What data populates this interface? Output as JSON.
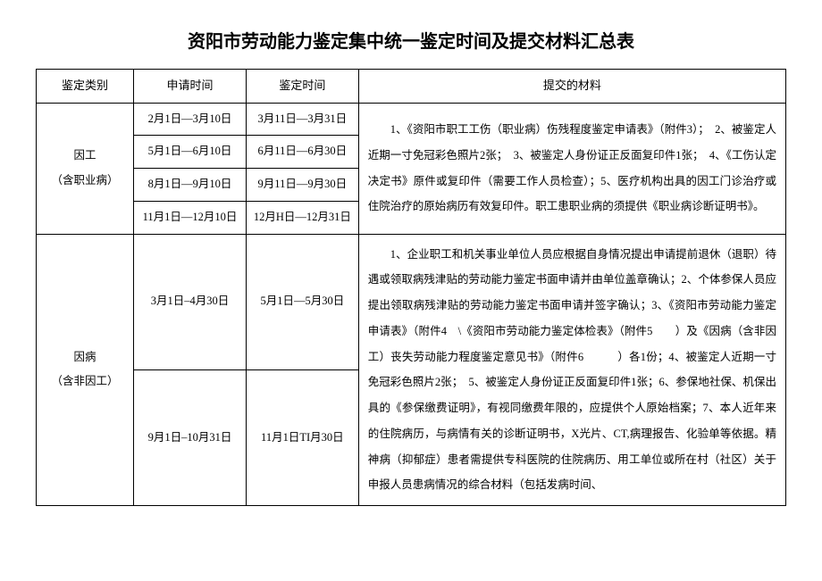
{
  "title": "资阳市劳动能力鉴定集中统一鉴定时间及提交材料汇总表",
  "title_fontsize": "20px",
  "headers": {
    "category": "鉴定类别",
    "apply_time": "申请时间",
    "assess_time": "鉴定时间",
    "materials": "提交的材料"
  },
  "header_fontsize": "13px",
  "body_fontsize": "12.5px",
  "section1": {
    "category_line1": "因工",
    "category_line2": "（含职业病）",
    "rows": [
      {
        "apply": "2月1日—3月10日",
        "assess": "3月11日—3月31日"
      },
      {
        "apply": "5月1日—6月10日",
        "assess": "6月11日—6月30日"
      },
      {
        "apply": "8月1日—9月10日",
        "assess": "9月11日—9月30日"
      },
      {
        "apply": "11月1日—12月10日",
        "assess": "12月H日—12月31日"
      }
    ],
    "materials": "　　1、《资阳市职工工伤（职业病）伤残程度鉴定申请表》（附件3）；　2、被鉴定人近期一寸免冠彩色照片2张；　3、被鉴定人身份证正反面复印件1张；　4、《工伤认定决定书》原件或复印件（需要工作人员检查）；5、医疗机构出具的因工门诊治疗或住院治疗的原始病历有效复印件。职工患职业病的须提供《职业病诊断证明书》。"
  },
  "section2": {
    "category_line1": "因病",
    "category_line2": "（含非因工）",
    "rows": [
      {
        "apply": "3月1日–4月30日",
        "assess": "5月1日—5月30日"
      },
      {
        "apply": "9月1日–10月31日",
        "assess": "11月1日TI月30日"
      }
    ],
    "materials": "　　1、企业职工和机关事业单位人员应根据自身情况提出申请提前退休（退职）待遇或领取病残津贴的劳动能力鉴定书面申请并由单位盖章确认；2、个体参保人员应提出领取病残津贴的劳动能力鉴定书面申请并签字确认；3、《资阳市劳动能力鉴定申请表》（附件4　\\《资阳市劳动能力鉴定体检表》（附件5　　）及《因病（含非因工）丧失劳动能力程度鉴定意见书》（附件6　　　）各1份；4、被鉴定人近期一寸免冠彩色照片2张；　5、被鉴定人身份证正反面复印件1张；6、参保地社保、机保出具的《参保缴费证明》，有视同缴费年限的，应提供个人原始档案；7、本人近年来的住院病历，与病情有关的诊断证明书，X光片、CT,病理报告、化验单等依据。精神病（抑郁症）患者需提供专科医院的住院病历、用工单位或所在村（社区）关于申报人员患病情况的综合材料（包括发病时间、"
  }
}
